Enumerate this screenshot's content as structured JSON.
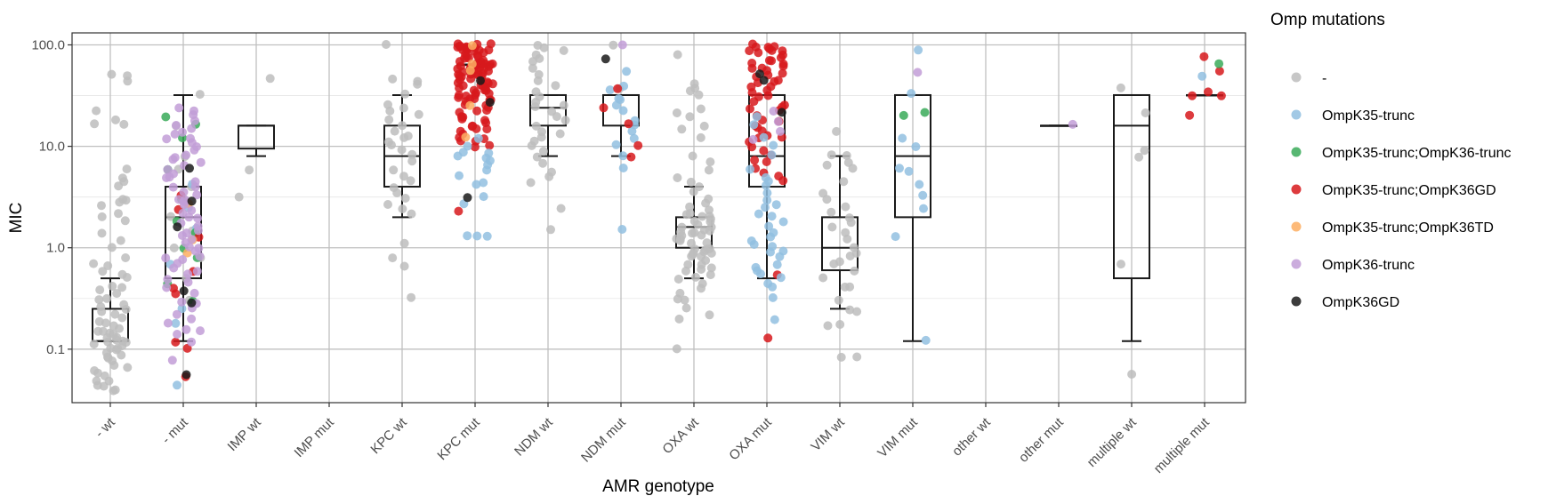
{
  "chart_data": {
    "type": "box-jitter",
    "xlabel": "AMR genotype",
    "ylabel": "MIC",
    "yscale": "log10",
    "ylim": [
      0.03,
      130
    ],
    "yticks": [
      0.1,
      1.0,
      10.0,
      100.0
    ],
    "ytick_labels": [
      "0.1",
      "1.0",
      "10.0",
      "100.0"
    ],
    "grid": true,
    "legend": {
      "title": "Omp mutations",
      "placement": "right"
    },
    "categories": [
      "- wt",
      "- mut",
      "IMP wt",
      "IMP mut",
      "KPC wt",
      "KPC mut",
      "NDM wt",
      "NDM mut",
      "OXA wt",
      "OXA mut",
      "VIM wt",
      "VIM mut",
      "other wt",
      "other mut",
      "multiple wt",
      "multiple mut"
    ],
    "groups": [
      {
        "name": "-",
        "color": "#bdbdbd"
      },
      {
        "name": "OmpK35-trunc",
        "color": "#92bfe0"
      },
      {
        "name": "OmpK35-trunc;OmpK36-trunc",
        "color": "#3aaa59"
      },
      {
        "name": "OmpK35-trunc;OmpK36GD",
        "color": "#d7191c"
      },
      {
        "name": "OmpK35-trunc;OmpK36TD",
        "color": "#fdae61"
      },
      {
        "name": "OmpK36-trunc",
        "color": "#c29ed7"
      },
      {
        "name": "OmpK36GD",
        "color": "#1a1a1a"
      }
    ],
    "boxes": [
      {
        "category": "- wt",
        "whisker_low": 0.12,
        "q1": 0.12,
        "median": 0.12,
        "q3": 0.25,
        "whisker_high": 0.5
      },
      {
        "category": "- mut",
        "whisker_low": 0.12,
        "q1": 0.5,
        "median": 2.0,
        "q3": 4.0,
        "whisker_high": 32
      },
      {
        "category": "IMP wt",
        "whisker_low": 8,
        "q1": 9.5,
        "median": 16,
        "q3": 16,
        "whisker_high": 16
      },
      {
        "category": "KPC wt",
        "whisker_low": 2,
        "q1": 4,
        "median": 8,
        "q3": 16,
        "whisker_high": 32
      },
      {
        "category": "KPC mut",
        "whisker_low": 64,
        "q1": 64,
        "median": 64,
        "q3": 64,
        "whisker_high": 64
      },
      {
        "category": "NDM wt",
        "whisker_low": 8,
        "q1": 16,
        "median": 24,
        "q3": 32,
        "whisker_high": 32
      },
      {
        "category": "NDM mut",
        "whisker_low": 8,
        "q1": 16,
        "median": 32,
        "q3": 32,
        "whisker_high": 32
      },
      {
        "category": "OXA wt",
        "whisker_low": 0.5,
        "q1": 1.0,
        "median": 1.6,
        "q3": 2.0,
        "whisker_high": 4
      },
      {
        "category": "OXA mut",
        "whisker_low": 0.5,
        "q1": 4,
        "median": 8,
        "q3": 32,
        "whisker_high": 32
      },
      {
        "category": "VIM wt",
        "whisker_low": 0.25,
        "q1": 0.6,
        "median": 1.0,
        "q3": 2.0,
        "whisker_high": 8
      },
      {
        "category": "VIM mut",
        "whisker_low": 0.12,
        "q1": 2,
        "median": 8,
        "q3": 32,
        "whisker_high": 32
      },
      {
        "category": "other mut",
        "whisker_low": 16,
        "q1": 16,
        "median": 16,
        "q3": 16,
        "whisker_high": 16
      },
      {
        "category": "multiple wt",
        "whisker_low": 0.12,
        "q1": 0.5,
        "median": 16,
        "q3": 32,
        "whisker_high": 32
      },
      {
        "category": "multiple mut",
        "whisker_low": 32,
        "q1": 32,
        "median": 32,
        "q3": 32,
        "whisker_high": 32
      }
    ],
    "points": [
      {
        "category": "- wt",
        "group": "-",
        "values": [
          50,
          50,
          45,
          22,
          18,
          17,
          16,
          6,
          5,
          4.4,
          4,
          3,
          3,
          2.8,
          2.6,
          2.2,
          2,
          1.9,
          1.4,
          1.2,
          1,
          0.8,
          0.7,
          0.65,
          0.6,
          0.55,
          0.5,
          0.42,
          0.4,
          0.38,
          0.35,
          0.32,
          0.3,
          0.28,
          0.26,
          0.25,
          0.24,
          0.22,
          0.2,
          0.19,
          0.18,
          0.17,
          0.16,
          0.15,
          0.15,
          0.14,
          0.14,
          0.13,
          0.13,
          0.12,
          0.12,
          0.12,
          0.12,
          0.11,
          0.11,
          0.1,
          0.1,
          0.1,
          0.09,
          0.09,
          0.085,
          0.08,
          0.075,
          0.07,
          0.065,
          0.06,
          0.058,
          0.055,
          0.05,
          0.048,
          0.045,
          0.042,
          0.04,
          0.04
        ]
      },
      {
        "category": "- mut",
        "group": "-",
        "values": [
          32,
          16,
          8,
          6,
          4,
          3,
          2,
          1.5,
          1,
          0.8,
          0.5,
          0.3
        ]
      },
      {
        "category": "- mut",
        "group": "OmpK35-trunc",
        "values": [
          0.25,
          0.18,
          0.045,
          1.6,
          0.7,
          2.5,
          4.2
        ]
      },
      {
        "category": "- mut",
        "group": "OmpK35-trunc;OmpK36-trunc",
        "values": [
          20,
          16,
          12,
          6,
          3,
          1.8,
          1.4,
          1,
          0.8,
          0.45,
          0.3
        ]
      },
      {
        "category": "- mut",
        "group": "OmpK35-trunc;OmpK36GD",
        "values": [
          1.3,
          0.6,
          0.35,
          0.12,
          0.1,
          0.055,
          0.4,
          2.4,
          3.2
        ]
      },
      {
        "category": "- mut",
        "group": "OmpK35-trunc;OmpK36TD",
        "values": [
          1.2,
          2.8,
          0.9
        ]
      },
      {
        "category": "- mut",
        "group": "OmpK36-trunc",
        "values": [
          24,
          22,
          20,
          18,
          16,
          15,
          14,
          13,
          12,
          12,
          11,
          10,
          9,
          8,
          8,
          7.5,
          7,
          6.5,
          6,
          5.5,
          5,
          4.8,
          4.5,
          4,
          4,
          3.6,
          3.3,
          3,
          3,
          2.8,
          2.6,
          2.4,
          2.2,
          2,
          2,
          1.8,
          1.6,
          1.5,
          1.4,
          1.3,
          1.2,
          1.1,
          1,
          1,
          0.9,
          0.85,
          0.8,
          0.75,
          0.7,
          0.65,
          0.6,
          0.55,
          0.5,
          0.45,
          0.4,
          0.35,
          0.3,
          0.28,
          0.25,
          0.22,
          0.2,
          0.18,
          0.16,
          0.15,
          0.14,
          0.12,
          0.08
        ]
      },
      {
        "category": "- mut",
        "group": "OmpK36GD",
        "values": [
          6,
          2.8,
          1.6,
          0.38,
          0.28,
          0.055
        ]
      },
      {
        "category": "IMP wt",
        "group": "-",
        "values": [
          48,
          6,
          3.2
        ]
      },
      {
        "category": "KPC wt",
        "group": "-",
        "values": [
          100,
          45,
          44,
          40,
          32,
          26,
          24,
          22,
          21,
          18,
          16,
          14,
          13,
          12,
          11,
          10,
          9,
          8.5,
          7,
          6,
          5,
          4.5,
          4,
          3.5,
          3,
          2.6,
          2.4,
          2.2,
          1.1,
          0.8,
          0.65,
          0.32
        ]
      },
      {
        "category": "KPC mut",
        "group": "OmpK35-trunc;OmpK36GD",
        "values": [
          100,
          100,
          100,
          98,
          97,
          96,
          95,
          94,
          92,
          90,
          88,
          86,
          84,
          82,
          80,
          78,
          76,
          74,
          72,
          70,
          68,
          66,
          64,
          64,
          64,
          64,
          63,
          62,
          61,
          60,
          59,
          58,
          57,
          56,
          55,
          54,
          53,
          52,
          51,
          50,
          49,
          48,
          47,
          46,
          45,
          44,
          43,
          42,
          41,
          40,
          39,
          38,
          37,
          36,
          35,
          34,
          33,
          32,
          32,
          32,
          31,
          30,
          29,
          28,
          27,
          26,
          25,
          24,
          23,
          22,
          21,
          20,
          19,
          18,
          17,
          16,
          16,
          15,
          14,
          13,
          12.5,
          12,
          11.5,
          11,
          10.5,
          10,
          100,
          90,
          80,
          70,
          60,
          50,
          40,
          30,
          20,
          15,
          64,
          64,
          45,
          35,
          2.3
        ]
      },
      {
        "category": "KPC mut",
        "group": "OmpK35-trunc",
        "values": [
          9,
          8.5,
          8,
          7.5,
          7,
          6.5,
          6,
          5,
          4.5,
          4.2,
          3.2,
          2.8,
          1.3,
          1.3,
          1.3,
          10,
          12
        ]
      },
      {
        "category": "KPC mut",
        "group": "OmpK35-trunc;OmpK36TD",
        "values": [
          100,
          64,
          25,
          12,
          55
        ]
      },
      {
        "category": "KPC mut",
        "group": "OmpK36GD",
        "values": [
          45,
          28,
          3.1
        ]
      },
      {
        "category": "NDM wt",
        "group": "-",
        "values": [
          100,
          95,
          90,
          80,
          75,
          70,
          60,
          50,
          45,
          40,
          35,
          30,
          28,
          26,
          24,
          22,
          20,
          18,
          16,
          14,
          13,
          12,
          11,
          10,
          9,
          8,
          7,
          5.5,
          5,
          4.5,
          2.4,
          1.5
        ]
      },
      {
        "category": "NDM mut",
        "group": "-",
        "values": [
          100,
          36
        ]
      },
      {
        "category": "NDM mut",
        "group": "OmpK35-trunc",
        "values": [
          55,
          40,
          35,
          30,
          28,
          25,
          22,
          18,
          16,
          14,
          12,
          10.5,
          8,
          6,
          1.5
        ]
      },
      {
        "category": "NDM mut",
        "group": "OmpK35-trunc;OmpK36GD",
        "values": [
          38,
          24,
          17,
          10,
          8
        ]
      },
      {
        "category": "NDM mut",
        "group": "OmpK36-trunc",
        "values": [
          100
        ]
      },
      {
        "category": "NDM mut",
        "group": "OmpK36GD",
        "values": [
          72
        ]
      },
      {
        "category": "OXA wt",
        "group": "-",
        "values": [
          80,
          42,
          38,
          35,
          32,
          24,
          22,
          20,
          16,
          15,
          12,
          8,
          7,
          6,
          5,
          4.5,
          4,
          3.5,
          3,
          2.8,
          2.6,
          2.4,
          2.2,
          2.1,
          2,
          2,
          1.9,
          1.8,
          1.8,
          1.7,
          1.6,
          1.6,
          1.5,
          1.5,
          1.4,
          1.4,
          1.3,
          1.3,
          1.2,
          1.2,
          1.1,
          1.1,
          1,
          1,
          1,
          0.95,
          0.9,
          0.9,
          0.85,
          0.8,
          0.8,
          0.75,
          0.7,
          0.7,
          0.65,
          0.6,
          0.6,
          0.55,
          0.5,
          0.5,
          0.45,
          0.4,
          0.35,
          0.32,
          0.3,
          0.25,
          0.22,
          0.2,
          0.1,
          1.2,
          1.4,
          0.9
        ]
      },
      {
        "category": "OXA mut",
        "group": "OmpK35-trunc;OmpK36GD",
        "values": [
          100,
          98,
          96,
          95,
          92,
          90,
          88,
          85,
          82,
          80,
          75,
          72,
          70,
          68,
          65,
          62,
          60,
          58,
          55,
          52,
          50,
          48,
          46,
          44,
          42,
          40,
          38,
          36,
          34,
          32,
          30,
          28,
          26,
          24,
          22,
          20,
          18,
          16,
          15,
          14,
          13,
          12,
          11,
          10,
          9,
          8,
          7.5,
          7,
          6,
          5.5,
          5,
          4.5,
          0.55,
          0.13,
          12,
          18,
          25
        ]
      },
      {
        "category": "OXA mut",
        "group": "OmpK35-trunc",
        "values": [
          20,
          16,
          12,
          10,
          8,
          6,
          5,
          4.5,
          4,
          3.5,
          3,
          2.6,
          2.5,
          2.2,
          2,
          1.8,
          1.6,
          1.4,
          1.3,
          1.2,
          1.1,
          1,
          0.95,
          0.9,
          0.8,
          0.7,
          0.65,
          0.6,
          0.55,
          0.5,
          0.45,
          0.4,
          0.32,
          0.19
        ]
      },
      {
        "category": "OXA mut",
        "group": "OmpK36-trunc",
        "values": [
          22,
          18,
          14,
          12
        ]
      },
      {
        "category": "OXA mut",
        "group": "OmpK36GD",
        "values": [
          52,
          44,
          22
        ]
      },
      {
        "category": "VIM wt",
        "group": "-",
        "values": [
          14,
          8,
          8,
          7,
          6.5,
          6,
          4.5,
          3.5,
          3,
          2.5,
          2.2,
          2,
          1.8,
          1.6,
          1.4,
          1.2,
          1,
          0.9,
          0.85,
          0.75,
          0.7,
          0.6,
          0.5,
          0.42,
          0.4,
          0.3,
          0.25,
          0.24,
          0.18,
          0.17,
          0.085,
          0.085
        ]
      },
      {
        "category": "VIM mut",
        "group": "OmpK35-trunc",
        "values": [
          90,
          34,
          12,
          10,
          6,
          5.5,
          4.2,
          3.2,
          2.5,
          1.3,
          0.12
        ]
      },
      {
        "category": "VIM mut",
        "group": "OmpK35-trunc;OmpK36-trunc",
        "values": [
          22,
          20
        ]
      },
      {
        "category": "VIM mut",
        "group": "OmpK36-trunc",
        "values": [
          55
        ]
      },
      {
        "category": "other mut",
        "group": "OmpK36-trunc",
        "values": [
          16
        ]
      },
      {
        "category": "multiple wt",
        "group": "-",
        "values": [
          38,
          22,
          9,
          8,
          0.7,
          0.055
        ]
      },
      {
        "category": "multiple mut",
        "group": "OmpK35-trunc;OmpK36GD",
        "values": [
          78,
          55,
          34,
          32,
          32,
          20
        ]
      },
      {
        "category": "multiple mut",
        "group": "OmpK35-trunc;OmpK36-trunc",
        "values": [
          64
        ]
      },
      {
        "category": "multiple mut",
        "group": "OmpK35-trunc",
        "values": [
          48
        ]
      }
    ]
  }
}
